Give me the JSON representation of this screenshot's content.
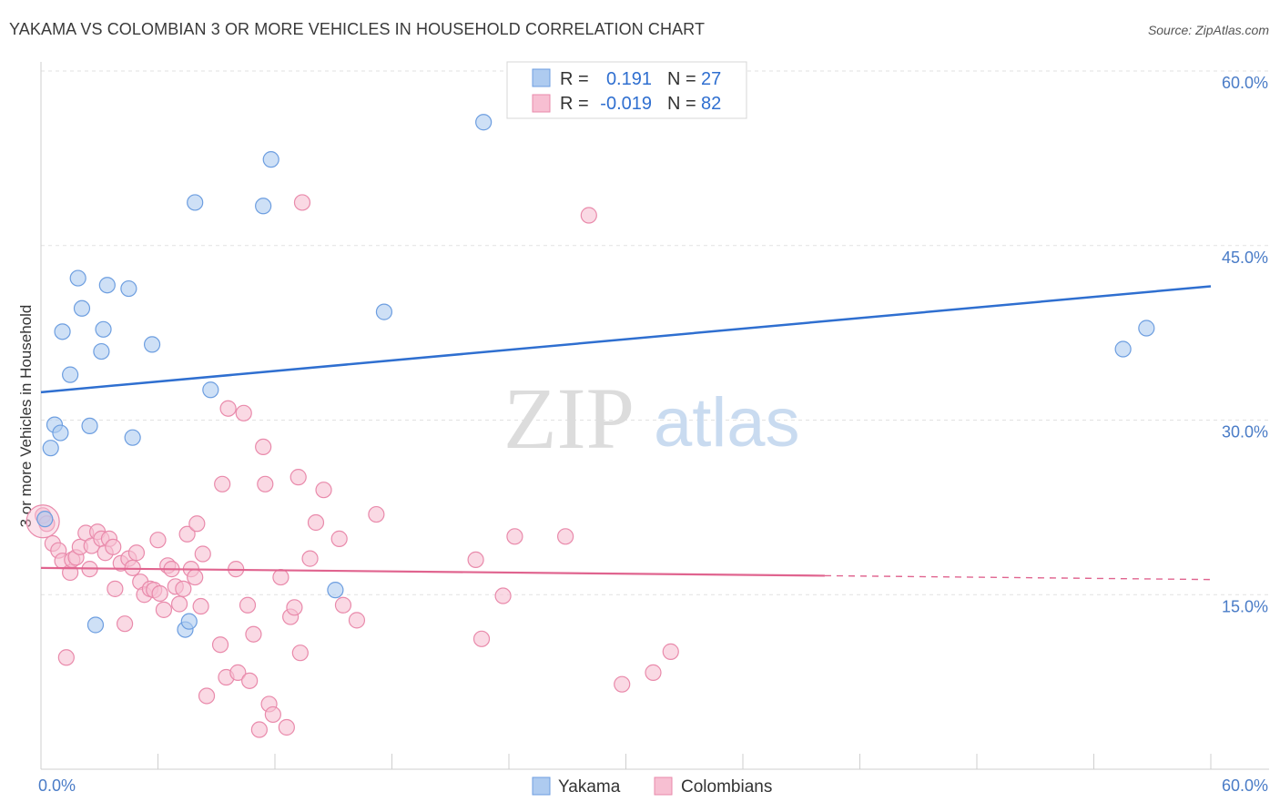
{
  "title": "YAKAMA VS COLOMBIAN 3 OR MORE VEHICLES IN HOUSEHOLD CORRELATION CHART",
  "source": "Source: ZipAtlas.com",
  "watermark": {
    "zip": "ZIP",
    "atlas": "atlas"
  },
  "colors": {
    "yakama_fill": "#aecbf0",
    "yakama_stroke": "#6d9ee0",
    "yakama_line": "#2f6fd0",
    "colombian_fill": "#f7bfd2",
    "colombian_stroke": "#e98aab",
    "colombian_line": "#e0648f",
    "tick_text": "#4a7cc7"
  },
  "legend": {
    "rows": [
      {
        "r_label": "R =",
        "r_value": "0.191",
        "n_label": "N =",
        "n_value": "27"
      },
      {
        "r_label": "R =",
        "r_value": "-0.019",
        "n_label": "N =",
        "n_value": "82"
      }
    ]
  },
  "chart_data": {
    "type": "scatter",
    "title": "YAKAMA VS COLOMBIAN 3 OR MORE VEHICLES IN HOUSEHOLD CORRELATION CHART",
    "xlabel": "",
    "ylabel": "3 or more Vehicles in Household",
    "xlim": [
      0,
      60
    ],
    "ylim": [
      0,
      60
    ],
    "x_tick_labels": [
      "0.0%",
      "60.0%"
    ],
    "y_ticks": [
      15,
      30,
      45,
      60
    ],
    "y_tick_labels": [
      "15.0%",
      "30.0%",
      "45.0%",
      "60.0%"
    ],
    "grid": true,
    "legend_position": "top-center",
    "series": [
      {
        "name": "Yakama",
        "r": 0.191,
        "n": 27,
        "trend": {
          "x": [
            0,
            60
          ],
          "y": [
            32.4,
            41.5
          ],
          "dashed_from": null
        },
        "points": [
          [
            0.2,
            21.5
          ],
          [
            0.5,
            27.6
          ],
          [
            0.7,
            29.6
          ],
          [
            1.0,
            28.9
          ],
          [
            1.1,
            37.6
          ],
          [
            1.5,
            33.9
          ],
          [
            1.9,
            42.2
          ],
          [
            2.1,
            39.6
          ],
          [
            2.5,
            29.5
          ],
          [
            2.8,
            12.4
          ],
          [
            3.1,
            35.9
          ],
          [
            3.2,
            37.8
          ],
          [
            3.4,
            41.6
          ],
          [
            4.5,
            41.3
          ],
          [
            4.7,
            28.5
          ],
          [
            5.7,
            36.5
          ],
          [
            7.4,
            12.0
          ],
          [
            7.6,
            12.7
          ],
          [
            7.9,
            48.7
          ],
          [
            8.7,
            32.6
          ],
          [
            11.4,
            48.4
          ],
          [
            11.8,
            52.4
          ],
          [
            15.1,
            15.4
          ],
          [
            17.6,
            39.3
          ],
          [
            22.7,
            55.6
          ],
          [
            55.5,
            36.1
          ],
          [
            56.7,
            37.9
          ]
        ]
      },
      {
        "name": "Colombians",
        "r": -0.019,
        "n": 82,
        "trend": {
          "x": [
            0,
            60
          ],
          "y": [
            17.3,
            16.3
          ],
          "dashed_from": 40.2
        },
        "points": [
          [
            0.1,
            21.8
          ],
          [
            0.3,
            21.1
          ],
          [
            0.6,
            19.4
          ],
          [
            0.9,
            18.8
          ],
          [
            1.1,
            17.9
          ],
          [
            1.3,
            9.6
          ],
          [
            1.5,
            16.9
          ],
          [
            1.6,
            18.0
          ],
          [
            1.8,
            18.2
          ],
          [
            2.0,
            19.1
          ],
          [
            2.3,
            20.3
          ],
          [
            2.5,
            17.2
          ],
          [
            2.6,
            19.2
          ],
          [
            2.9,
            20.4
          ],
          [
            3.1,
            19.8
          ],
          [
            3.3,
            18.6
          ],
          [
            3.5,
            19.8
          ],
          [
            3.7,
            19.1
          ],
          [
            3.8,
            15.5
          ],
          [
            4.1,
            17.7
          ],
          [
            4.3,
            12.5
          ],
          [
            4.5,
            18.1
          ],
          [
            4.7,
            17.3
          ],
          [
            4.9,
            18.6
          ],
          [
            5.1,
            16.1
          ],
          [
            5.3,
            15.0
          ],
          [
            5.6,
            15.5
          ],
          [
            5.8,
            15.4
          ],
          [
            6.0,
            19.7
          ],
          [
            6.1,
            15.1
          ],
          [
            6.3,
            13.7
          ],
          [
            6.5,
            17.5
          ],
          [
            6.7,
            17.2
          ],
          [
            6.9,
            15.7
          ],
          [
            7.1,
            14.2
          ],
          [
            7.3,
            15.5
          ],
          [
            7.5,
            20.2
          ],
          [
            7.7,
            17.2
          ],
          [
            7.9,
            16.5
          ],
          [
            8.0,
            21.1
          ],
          [
            8.2,
            14.0
          ],
          [
            8.3,
            18.5
          ],
          [
            8.5,
            6.3
          ],
          [
            9.2,
            10.7
          ],
          [
            9.3,
            24.5
          ],
          [
            9.5,
            7.9
          ],
          [
            9.6,
            31.0
          ],
          [
            10.0,
            17.2
          ],
          [
            10.1,
            8.3
          ],
          [
            10.4,
            30.6
          ],
          [
            10.6,
            14.1
          ],
          [
            10.7,
            7.6
          ],
          [
            10.9,
            11.6
          ],
          [
            11.2,
            3.4
          ],
          [
            11.4,
            27.7
          ],
          [
            11.5,
            24.5
          ],
          [
            11.7,
            5.6
          ],
          [
            11.9,
            4.7
          ],
          [
            12.3,
            16.5
          ],
          [
            12.6,
            3.6
          ],
          [
            12.8,
            13.1
          ],
          [
            13.0,
            13.9
          ],
          [
            13.2,
            25.1
          ],
          [
            13.3,
            10.0
          ],
          [
            13.4,
            48.7
          ],
          [
            13.8,
            18.1
          ],
          [
            14.1,
            21.2
          ],
          [
            14.5,
            24.0
          ],
          [
            15.3,
            19.8
          ],
          [
            15.5,
            14.1
          ],
          [
            16.2,
            12.8
          ],
          [
            17.2,
            21.9
          ],
          [
            22.3,
            18.0
          ],
          [
            22.6,
            11.2
          ],
          [
            23.7,
            14.9
          ],
          [
            24.3,
            20.0
          ],
          [
            26.9,
            20.0
          ],
          [
            28.1,
            47.6
          ],
          [
            29.8,
            7.3
          ],
          [
            31.4,
            8.3
          ],
          [
            32.3,
            10.1
          ],
          [
            0.1,
            21.3
          ]
        ]
      }
    ]
  },
  "bottom_legend": [
    "Yakama",
    "Colombians"
  ]
}
